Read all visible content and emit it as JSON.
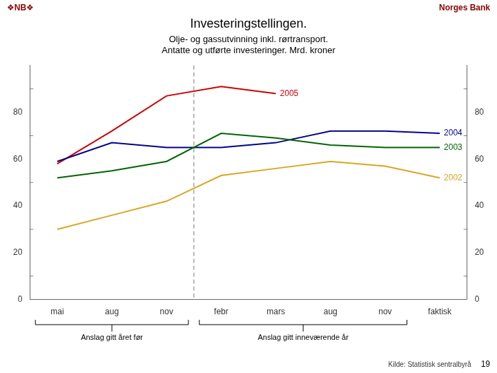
{
  "chart_data": {
    "type": "line",
    "title": "Investeringstellingen.",
    "subtitle": [
      "Olje- og gassutvinning inkl. rørtransport.",
      "Antatte og utførte investeringer. Mrd. kroner"
    ],
    "header_left": "❖NB❖",
    "header_right": "Norges Bank",
    "header_color": "#8B0000",
    "source": "Kilde: Statistisk sentralbyrå",
    "page_number": "19",
    "categories": [
      "mai",
      "aug",
      "nov",
      "febr",
      "mars",
      "aug",
      "nov",
      "faktisk"
    ],
    "series": [
      {
        "name": "2002",
        "color": "#DAA520",
        "values": [
          30,
          36,
          42,
          53,
          56,
          59,
          57,
          52
        ]
      },
      {
        "name": "2003",
        "color": "#006400",
        "values": [
          52,
          55,
          59,
          71,
          69,
          66,
          65,
          65
        ]
      },
      {
        "name": "2004",
        "color": "#00008B",
        "values": [
          59,
          67,
          65,
          65,
          67,
          72,
          72,
          71
        ]
      },
      {
        "name": "2005",
        "color": "#cc0000",
        "values": [
          58,
          72,
          87,
          91,
          88,
          null,
          null,
          null
        ]
      }
    ],
    "ylim": [
      0,
      100
    ],
    "yticks": [
      0,
      20,
      40,
      60,
      80
    ],
    "y2lim": [
      0,
      100
    ],
    "y2ticks": [
      0,
      20,
      40,
      60,
      80
    ],
    "minor_yticks": [
      10,
      30,
      50,
      70,
      90
    ],
    "vline": 2.5,
    "groups": [
      {
        "label": "Anslag gitt året før",
        "first": 0,
        "last": 2
      },
      {
        "label": "Anslag gitt inneværende år",
        "first": 3,
        "last": 6
      }
    ],
    "grid": false
  }
}
